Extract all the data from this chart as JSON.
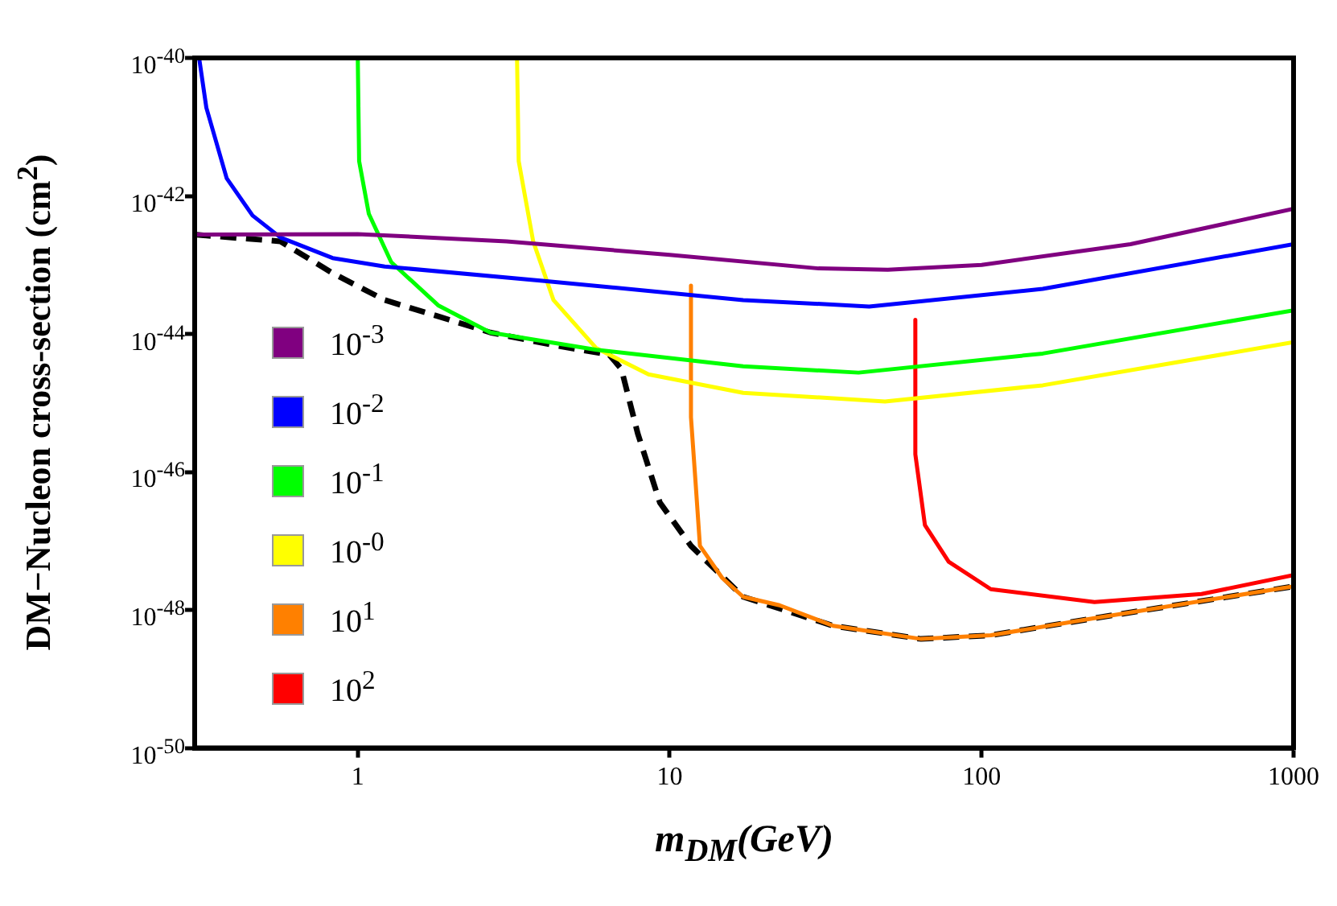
{
  "chart_data": {
    "type": "line",
    "xlabel": "m$_{DM}$(GeV)",
    "ylabel": "DM−Nucleon cross-section (cm$^{2}$)",
    "log": "xy",
    "grid": false,
    "legend": "left",
    "marker": "none",
    "xlim": [
      0.3,
      1000
    ],
    "xticks": [
      1,
      10,
      100,
      1000
    ],
    "ylim": [
      1e-50,
      1e-40
    ],
    "yticks": [
      {
        "value": 1e-50,
        "label": "10$^{-50}$"
      },
      {
        "value": 1e-48,
        "label": "10$^{-48}$"
      },
      {
        "value": 1e-46,
        "label": "10$^{-46}$"
      },
      {
        "value": 1e-44,
        "label": "10$^{-44}$"
      },
      {
        "value": 1e-42,
        "label": "10$^{-42}$"
      },
      {
        "value": 1e-40,
        "label": "10$^{-40}$"
      }
    ],
    "series": [
      {
        "name": "10$^{-3}$",
        "color": "#800080",
        "x": [
          0.3,
          1,
          3,
          10,
          30,
          50,
          100,
          300,
          1000
        ],
        "values": [
          2.75e-43,
          2.8e-43,
          2.2e-43,
          1.4e-43,
          8.9e-44,
          8.5e-44,
          1e-43,
          2e-43,
          6.5e-43
        ]
      },
      {
        "name": "10$^{-2}$",
        "color": "#0000ff",
        "x": [
          0.31,
          0.327,
          0.38,
          0.46,
          0.565,
          0.83,
          1.22,
          3.91,
          17.2,
          43.6,
          157,
          1000
        ],
        "values": [
          1e-40,
          1.9e-41,
          1.8e-42,
          5.2e-43,
          2.5e-43,
          1.26e-43,
          9.5e-44,
          5.9e-44,
          3.1e-44,
          2.5e-44,
          4.5e-44,
          2e-43
        ]
      },
      {
        "name": "10$^{-1}$",
        "color": "#00ff00",
        "x": [
          1,
          1.01,
          1.085,
          1.28,
          1.81,
          2.66,
          5.82,
          17.2,
          40.3,
          157,
          1000
        ],
        "values": [
          1e-40,
          3.2e-42,
          5.5e-43,
          1.1e-43,
          2.6e-44,
          1.05e-44,
          5.9e-45,
          3.4e-45,
          2.75e-45,
          5.2e-45,
          2.2e-44
        ]
      },
      {
        "name": "10$^{-0}$",
        "color": "#ffff00",
        "x": [
          3.24,
          3.28,
          3.65,
          4.24,
          5.82,
          8.55,
          17.2,
          49,
          157,
          1000
        ],
        "values": [
          1e-40,
          3.2e-42,
          2.2e-43,
          3.1e-44,
          6.2e-45,
          2.6e-45,
          1.4e-45,
          1.05e-45,
          1.8e-45,
          7.6e-45
        ]
      },
      {
        "name": "10$^{1}$",
        "color": "#ff8000",
        "x": [
          11.7,
          11.7,
          12.1,
          12.5,
          14.7,
          17.2,
          22.5,
          33.4,
          64,
          107,
          230,
          1000
        ],
        "values": [
          5e-44,
          6.2e-46,
          7.2e-47,
          8.5e-48,
          2.95e-48,
          1.55e-48,
          1.17e-48,
          5.9e-49,
          3.8e-49,
          4.3e-49,
          7.6e-49,
          2.2e-48
        ]
      },
      {
        "name": "10$^{2}$",
        "color": "#ff0000",
        "x": [
          61.3,
          61.3,
          65.8,
          78.4,
          107,
          230,
          507,
          1000
        ],
        "values": [
          1.6e-44,
          1.8e-46,
          1.7e-47,
          5e-48,
          2e-48,
          1.3e-48,
          1.7e-48,
          3.2e-48
        ]
      },
      {
        "color": "#000000",
        "line_style": "dashed",
        "x": [
          0.3,
          0.565,
          0.83,
          1.22,
          1.81,
          2.66,
          4.24,
          6.4,
          7.0,
          7.9,
          9.3,
          11.7,
          17.2,
          33.4,
          64,
          107,
          230,
          1000
        ],
        "values": [
          2.75e-43,
          2.2e-43,
          7.6e-44,
          3.1e-44,
          1.8e-44,
          1.05e-44,
          6.9e-45,
          5e-45,
          3.1e-45,
          3.6e-46,
          3.6e-47,
          8.5e-48,
          1.55e-48,
          5.9e-49,
          3.8e-49,
          4.3e-49,
          7.6e-49,
          2.2e-48
        ]
      }
    ]
  }
}
